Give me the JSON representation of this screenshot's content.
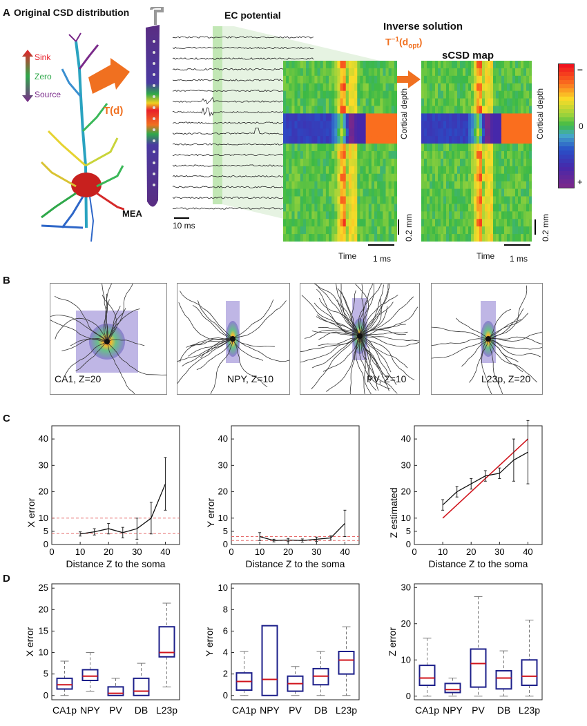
{
  "panels": {
    "A": {
      "letter": "A",
      "title_csd": "Original CSD distribution",
      "legend": {
        "sink": "Sink",
        "zero": "Zero",
        "source": "Source"
      },
      "transform": "T(d)",
      "mea": "MEA",
      "ec_title": "EC potential",
      "scale_time": "10 ms",
      "inverse_title": "Inverse solution",
      "inverse_formula_base": "T",
      "inverse_formula_sup": "−1",
      "inverse_formula_arg": "(d",
      "inverse_formula_sub": "opt",
      "inverse_formula_close": ")",
      "scsd_title": "sCSD map",
      "cortical_depth": "Cortical depth",
      "scale_mm": "0.2 mm",
      "time_label": "Time",
      "scale_ms": "1 ms",
      "colorbar": {
        "top": "–",
        "mid": "0",
        "bottom": "+"
      }
    },
    "B": {
      "letter": "B",
      "cells": [
        {
          "label": "CA1, Z=20"
        },
        {
          "label": "NPY, Z=10"
        },
        {
          "label": "PV, Z=10"
        },
        {
          "label": "L23p, Z=20"
        }
      ]
    },
    "C": {
      "letter": "C"
    },
    "D": {
      "letter": "D"
    }
  },
  "chart_data": [
    {
      "type": "line",
      "id": "C1",
      "xlabel": "Distance Z to the soma",
      "ylabel": "X error",
      "xlim": [
        0,
        45
      ],
      "ylim": [
        0,
        45
      ],
      "xticks": [
        0,
        10,
        20,
        30,
        40
      ],
      "yticks": [
        0,
        5,
        10,
        20,
        30,
        40
      ],
      "x": [
        10,
        15,
        20,
        25,
        30,
        35,
        40
      ],
      "y": [
        4,
        4.8,
        6,
        4.5,
        6,
        10,
        23
      ],
      "err": [
        0.8,
        1.2,
        2,
        2,
        4,
        6,
        10
      ],
      "reference_lines": [
        4.2,
        10
      ]
    },
    {
      "type": "line",
      "id": "C2",
      "xlabel": "Distance Z to the soma",
      "ylabel": "Y error",
      "xlim": [
        0,
        45
      ],
      "ylim": [
        0,
        45
      ],
      "xticks": [
        0,
        10,
        20,
        30,
        40
      ],
      "yticks": [
        0,
        5,
        10,
        20,
        30,
        40
      ],
      "x": [
        10,
        15,
        20,
        25,
        30,
        35,
        40
      ],
      "y": [
        3,
        1.5,
        1.7,
        1.5,
        2,
        2.5,
        8
      ],
      "err": [
        1.5,
        0.5,
        0.6,
        0.6,
        0.8,
        0.8,
        5
      ],
      "reference_lines": [
        1.5,
        3
      ]
    },
    {
      "type": "line",
      "id": "C3",
      "xlabel": "Distance Z to the soma",
      "ylabel": "Z estimated",
      "xlim": [
        0,
        45
      ],
      "ylim": [
        0,
        45
      ],
      "xticks": [
        0,
        10,
        20,
        30,
        40
      ],
      "yticks": [
        0,
        5,
        10,
        20,
        30,
        40
      ],
      "x": [
        10,
        15,
        20,
        25,
        30,
        35,
        40
      ],
      "y": [
        15,
        20,
        23,
        26,
        27,
        32,
        35
      ],
      "err": [
        2,
        2,
        2,
        2,
        2,
        8,
        12
      ],
      "identity_line": [
        [
          10,
          10
        ],
        [
          40,
          40
        ]
      ]
    },
    {
      "type": "box",
      "id": "D1",
      "ylabel": "X error",
      "ylim": [
        -1,
        26
      ],
      "yticks": [
        0,
        5,
        10,
        15,
        20,
        25
      ],
      "categories": [
        "CA1p",
        "NPY",
        "PV",
        "DB",
        "L23p"
      ],
      "boxes": [
        {
          "min": 0,
          "q1": 1.5,
          "median": 2.5,
          "q3": 4,
          "max": 8
        },
        {
          "min": 1,
          "q1": 3.5,
          "median": 4.5,
          "q3": 6,
          "max": 10
        },
        {
          "min": 0,
          "q1": 0,
          "median": 0.5,
          "q3": 2,
          "max": 4
        },
        {
          "min": 0,
          "q1": 0,
          "median": 1,
          "q3": 4,
          "max": 7.5
        },
        {
          "min": 2,
          "q1": 9,
          "median": 10,
          "q3": 16,
          "max": 21.5
        }
      ]
    },
    {
      "type": "box",
      "id": "D2",
      "ylabel": "Y error",
      "ylim": [
        -0.4,
        10.4
      ],
      "yticks": [
        0,
        2,
        4,
        6,
        8,
        10
      ],
      "categories": [
        "CA1p",
        "NPY",
        "PV",
        "DB",
        "L23p"
      ],
      "boxes": [
        {
          "min": 0,
          "q1": 0.5,
          "median": 1.3,
          "q3": 2.1,
          "max": 4.1
        },
        {
          "min": 0,
          "q1": 0,
          "median": 1.5,
          "q3": 6.5,
          "max": 6.5
        },
        {
          "min": 0,
          "q1": 0.4,
          "median": 1.1,
          "q3": 1.8,
          "max": 2.7
        },
        {
          "min": 0,
          "q1": 1,
          "median": 1.8,
          "q3": 2.5,
          "max": 4.1
        },
        {
          "min": 0,
          "q1": 2,
          "median": 3.3,
          "q3": 4.1,
          "max": 6.4
        }
      ]
    },
    {
      "type": "box",
      "id": "D3",
      "ylabel": "Z error",
      "ylim": [
        -1,
        31
      ],
      "yticks": [
        0,
        10,
        20,
        30
      ],
      "categories": [
        "CA1p",
        "NPY",
        "PV",
        "DB",
        "L23p"
      ],
      "boxes": [
        {
          "min": 0,
          "q1": 3,
          "median": 5,
          "q3": 8.5,
          "max": 16
        },
        {
          "min": 0,
          "q1": 1,
          "median": 1.8,
          "q3": 3.5,
          "max": 5
        },
        {
          "min": 0,
          "q1": 2.5,
          "median": 9,
          "q3": 13,
          "max": 27.5
        },
        {
          "min": 0,
          "q1": 2,
          "median": 5,
          "q3": 7,
          "max": 12.5
        },
        {
          "min": 0,
          "q1": 3,
          "median": 5.5,
          "q3": 10,
          "max": 21
        }
      ]
    }
  ],
  "colors": {
    "sink": "#e8202a",
    "zero": "#2fa84a",
    "source": "#7a2a8a",
    "arrow": "#f07020",
    "ec_highlight": "#b7e3a8",
    "median": "#d0131b",
    "box": "#1c1f8a",
    "refline": "#e56a6a",
    "identity": "#d0131b",
    "probe": "#5a2d82"
  }
}
